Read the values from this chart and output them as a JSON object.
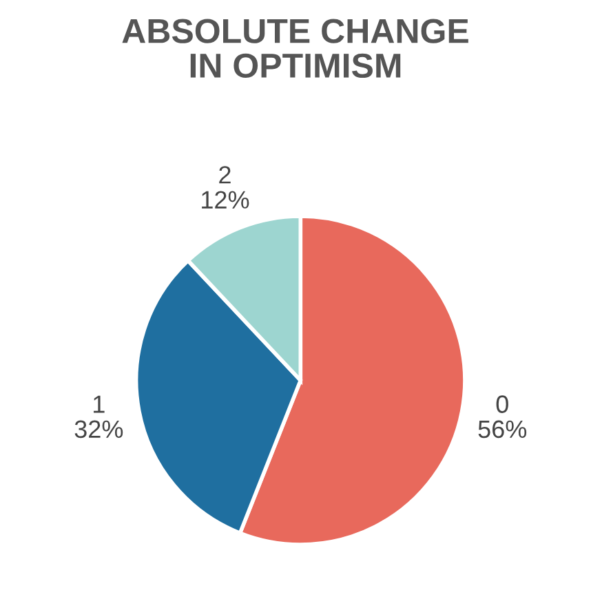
{
  "chart_data": {
    "type": "pie",
    "title": "ABSOLUTE CHANGE\nIN OPTIMISM",
    "categories": [
      "0",
      "1",
      "2"
    ],
    "values": [
      56,
      32,
      12
    ],
    "value_labels": [
      "56%",
      "32%",
      "12%"
    ],
    "colors": [
      "#e8695c",
      "#1f6fa0",
      "#9dd5d0"
    ],
    "legend": false
  }
}
